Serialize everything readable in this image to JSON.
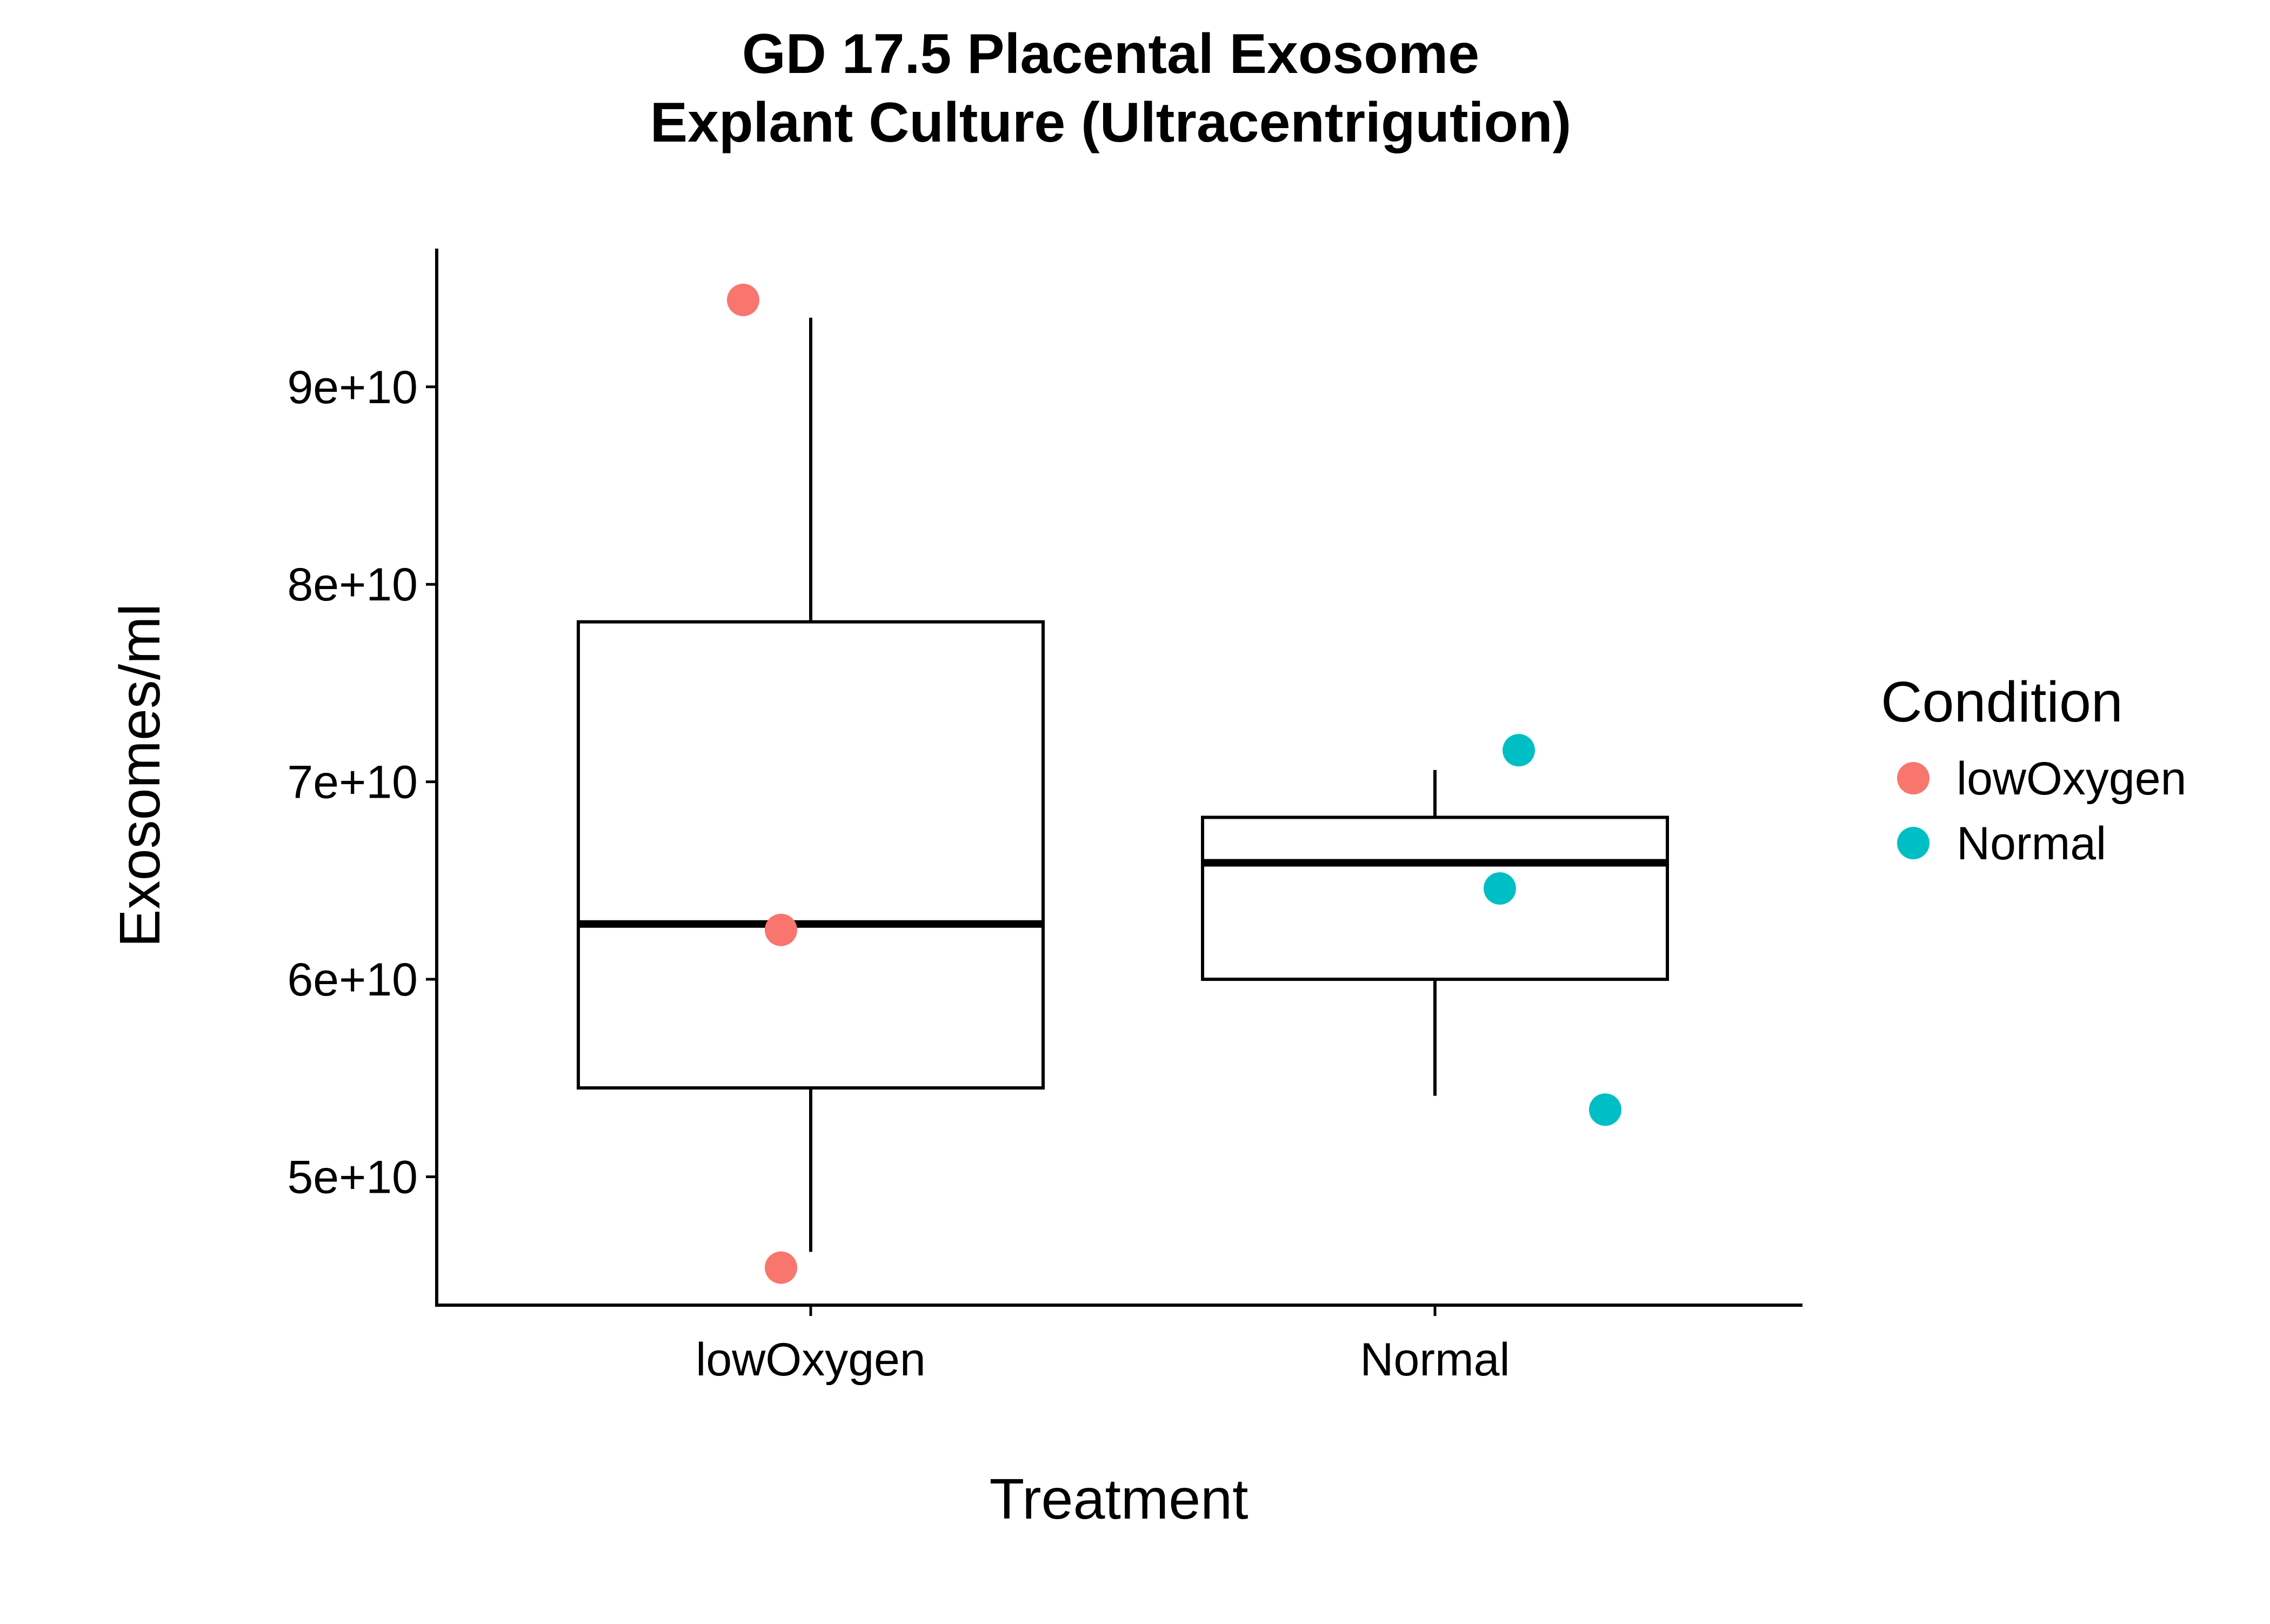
{
  "chart_data": {
    "type": "box",
    "title_lines": [
      "GD 17.5 Placental Exosome",
      "Explant Culture (Ultracentrigution)"
    ],
    "xlabel": "Treatment",
    "ylabel": "Exosomes/ml",
    "categories": [
      "lowOxygen",
      "Normal"
    ],
    "ylim": [
      43500000000,
      97000000000
    ],
    "y_ticks": [
      50000000000,
      60000000000,
      70000000000,
      80000000000,
      90000000000
    ],
    "y_tick_labels": [
      "5e+10",
      "6e+10",
      "7e+10",
      "8e+10",
      "9e+10"
    ],
    "boxes": [
      {
        "category": "lowOxygen",
        "whisker_low": 46200000000,
        "q1": 54500000000,
        "median": 62800000000,
        "q3": 78100000000,
        "whisker_high": 93500000000
      },
      {
        "category": "Normal",
        "whisker_low": 54100000000,
        "q1": 60000000000,
        "median": 65900000000,
        "q3": 68200000000,
        "whisker_high": 70600000000
      }
    ],
    "points": [
      {
        "category": "lowOxygen",
        "y": 94400000000
      },
      {
        "category": "lowOxygen",
        "y": 62500000000
      },
      {
        "category": "lowOxygen",
        "y": 45400000000
      },
      {
        "category": "Normal",
        "y": 71600000000
      },
      {
        "category": "Normal",
        "y": 64600000000
      },
      {
        "category": "Normal",
        "y": 53400000000
      }
    ],
    "legend": {
      "title": "Condition",
      "placement": "right",
      "entries": [
        {
          "label": "lowOxygen",
          "color": "#F8766D"
        },
        {
          "label": "Normal",
          "color": "#00BFC4"
        }
      ]
    },
    "grid": false
  }
}
